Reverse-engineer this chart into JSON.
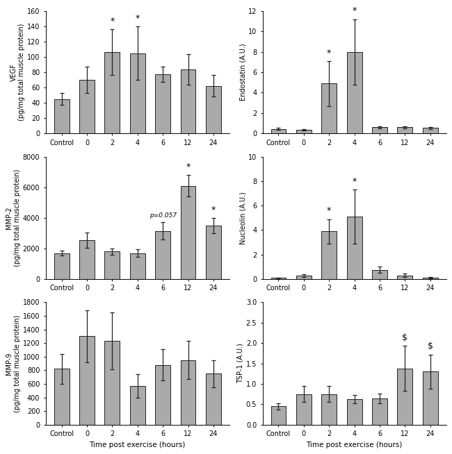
{
  "categories": [
    "Control",
    "0",
    "2",
    "4",
    "6",
    "12",
    "24"
  ],
  "bar_color": "#aaaaaa",
  "edge_color": "#222222",
  "error_color": "#222222",
  "vegf": {
    "values": [
      45,
      70,
      106,
      105,
      77,
      84,
      62
    ],
    "errors": [
      8,
      17,
      30,
      35,
      10,
      20,
      14
    ],
    "ylabel": "VEGF\n(pg/mg total muscle protein)",
    "ylim": [
      0,
      160
    ],
    "yticks": [
      0,
      20,
      40,
      60,
      80,
      100,
      120,
      140,
      160
    ],
    "sig_indices": [
      2,
      3
    ],
    "sig_symbol": "*",
    "annot": []
  },
  "endostatin": {
    "values": [
      0.45,
      0.35,
      4.9,
      8.0,
      0.6,
      0.6,
      0.55
    ],
    "errors": [
      0.12,
      0.05,
      2.2,
      3.2,
      0.12,
      0.12,
      0.1
    ],
    "ylabel": "Endostatin (A.U.)",
    "ylim": [
      0,
      12
    ],
    "yticks": [
      0,
      2,
      4,
      6,
      8,
      10,
      12
    ],
    "sig_indices": [
      2,
      3
    ],
    "sig_symbol": "*",
    "annot": []
  },
  "mmp2": {
    "values": [
      1700,
      2550,
      1800,
      1700,
      3150,
      6100,
      3500
    ],
    "errors": [
      150,
      500,
      200,
      250,
      550,
      700,
      500
    ],
    "ylabel": "MMP-2\n(pg/mg total muscle protein)",
    "ylim": [
      0,
      8000
    ],
    "yticks": [
      0,
      2000,
      4000,
      6000,
      8000
    ],
    "sig_indices": [
      5,
      6
    ],
    "sig_symbol": "*",
    "annot": [
      {
        "index": 4,
        "text": "p=0.057"
      }
    ]
  },
  "nucleolin": {
    "values": [
      0.1,
      0.28,
      3.9,
      5.1,
      0.75,
      0.3,
      0.12
    ],
    "errors": [
      0.04,
      0.1,
      1.0,
      2.2,
      0.25,
      0.15,
      0.05
    ],
    "ylabel": "Nucleolin (A.U.)",
    "ylim": [
      0,
      10
    ],
    "yticks": [
      0,
      2,
      4,
      6,
      8,
      10
    ],
    "sig_indices": [
      2,
      3
    ],
    "sig_symbol": "*",
    "annot": []
  },
  "mmp9": {
    "values": [
      820,
      1300,
      1230,
      570,
      880,
      950,
      750
    ],
    "errors": [
      220,
      380,
      420,
      170,
      230,
      280,
      200
    ],
    "ylabel": "MMP-9\n(pg/mg total muscle protein)",
    "ylim": [
      0,
      1800
    ],
    "yticks": [
      0,
      200,
      400,
      600,
      800,
      1000,
      1200,
      1400,
      1600,
      1800
    ],
    "sig_indices": [],
    "sig_symbol": "*",
    "annot": [],
    "xlabel": "Time post exercise (hours)"
  },
  "tsp1": {
    "values": [
      0.45,
      0.75,
      0.75,
      0.62,
      0.65,
      1.38,
      1.3
    ],
    "errors": [
      0.08,
      0.2,
      0.2,
      0.1,
      0.12,
      0.55,
      0.42
    ],
    "ylabel": "TSP-1 (A.U.)",
    "ylim": [
      0,
      3.0
    ],
    "yticks": [
      0.0,
      0.5,
      1.0,
      1.5,
      2.0,
      2.5,
      3.0
    ],
    "sig_indices": [
      5,
      6
    ],
    "sig_symbol": "$",
    "annot": [],
    "xlabel": "Time post exercise (hours)"
  }
}
